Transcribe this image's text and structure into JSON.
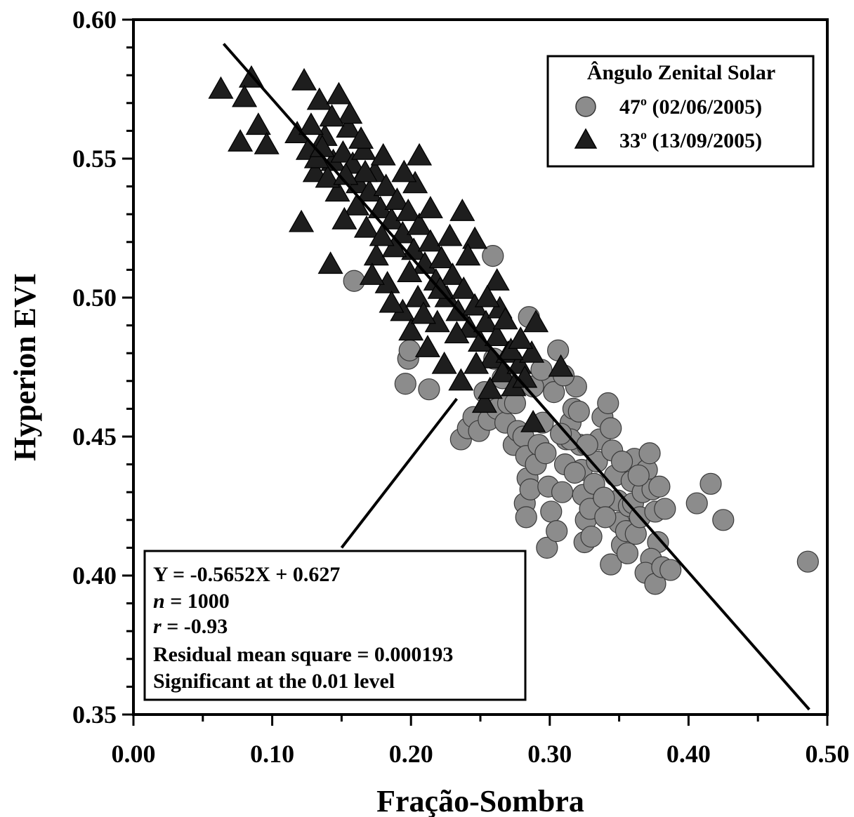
{
  "chart_data": {
    "type": "scatter",
    "title": "",
    "xlabel": "Fração-Sombra",
    "ylabel": "Hyperion EVI",
    "xlim": [
      0.0,
      0.5
    ],
    "ylim": [
      0.35,
      0.6
    ],
    "xticks": [
      "0.00",
      "0.10",
      "0.20",
      "0.30",
      "0.40",
      "0.50"
    ],
    "yticks": [
      "0.35",
      "0.40",
      "0.45",
      "0.50",
      "0.55",
      "0.60"
    ],
    "grid": false,
    "legend": {
      "title": "Ângulo Zenital Solar",
      "placement": "top-right",
      "entries": [
        {
          "label": "47",
          "sup": "o",
          "suffix": " (02/06/2005)",
          "marker": "circle"
        },
        {
          "label": "33",
          "sup": "o",
          "suffix": " (13/09/2005)",
          "marker": "triangle"
        }
      ]
    },
    "series": [
      {
        "name": "47o (02/06/2005)",
        "marker": "circle",
        "color": "#8c8c8c",
        "points": [
          [
            0.159,
            0.506
          ],
          [
            0.259,
            0.515
          ],
          [
            0.196,
            0.469
          ],
          [
            0.213,
            0.467
          ],
          [
            0.198,
            0.478
          ],
          [
            0.199,
            0.481
          ],
          [
            0.236,
            0.449
          ],
          [
            0.241,
            0.453
          ],
          [
            0.245,
            0.457
          ],
          [
            0.249,
            0.452
          ],
          [
            0.256,
            0.456
          ],
          [
            0.262,
            0.46
          ],
          [
            0.268,
            0.455
          ],
          [
            0.27,
            0.462
          ],
          [
            0.274,
            0.447
          ],
          [
            0.277,
            0.452
          ],
          [
            0.281,
            0.45
          ],
          [
            0.283,
            0.443
          ],
          [
            0.284,
            0.435
          ],
          [
            0.282,
            0.426
          ],
          [
            0.283,
            0.421
          ],
          [
            0.286,
            0.431
          ],
          [
            0.29,
            0.44
          ],
          [
            0.292,
            0.447
          ],
          [
            0.295,
            0.455
          ],
          [
            0.297,
            0.444
          ],
          [
            0.299,
            0.432
          ],
          [
            0.301,
            0.423
          ],
          [
            0.298,
            0.41
          ],
          [
            0.305,
            0.416
          ],
          [
            0.309,
            0.43
          ],
          [
            0.311,
            0.44
          ],
          [
            0.312,
            0.449
          ],
          [
            0.315,
            0.455
          ],
          [
            0.317,
            0.46
          ],
          [
            0.319,
            0.468
          ],
          [
            0.321,
            0.459
          ],
          [
            0.322,
            0.447
          ],
          [
            0.323,
            0.438
          ],
          [
            0.324,
            0.429
          ],
          [
            0.326,
            0.42
          ],
          [
            0.325,
            0.412
          ],
          [
            0.329,
            0.424
          ],
          [
            0.332,
            0.433
          ],
          [
            0.334,
            0.441
          ],
          [
            0.336,
            0.449
          ],
          [
            0.338,
            0.457
          ],
          [
            0.342,
            0.462
          ],
          [
            0.344,
            0.453
          ],
          [
            0.345,
            0.445
          ],
          [
            0.347,
            0.436
          ],
          [
            0.349,
            0.427
          ],
          [
            0.35,
            0.419
          ],
          [
            0.352,
            0.411
          ],
          [
            0.355,
            0.416
          ],
          [
            0.357,
            0.425
          ],
          [
            0.359,
            0.434
          ],
          [
            0.361,
            0.442
          ],
          [
            0.36,
            0.426
          ],
          [
            0.362,
            0.415
          ],
          [
            0.365,
            0.421
          ],
          [
            0.367,
            0.43
          ],
          [
            0.37,
            0.438
          ],
          [
            0.372,
            0.444
          ],
          [
            0.374,
            0.431
          ],
          [
            0.376,
            0.423
          ],
          [
            0.378,
            0.412
          ],
          [
            0.373,
            0.406
          ],
          [
            0.369,
            0.401
          ],
          [
            0.376,
            0.397
          ],
          [
            0.381,
            0.403
          ],
          [
            0.387,
            0.402
          ],
          [
            0.383,
            0.424
          ],
          [
            0.379,
            0.432
          ],
          [
            0.406,
            0.426
          ],
          [
            0.416,
            0.433
          ],
          [
            0.425,
            0.42
          ],
          [
            0.486,
            0.405
          ],
          [
            0.344,
            0.404
          ],
          [
            0.356,
            0.408
          ],
          [
            0.298,
            0.47
          ],
          [
            0.306,
            0.481
          ],
          [
            0.303,
            0.466
          ],
          [
            0.31,
            0.472
          ],
          [
            0.288,
            0.468
          ],
          [
            0.294,
            0.474
          ],
          [
            0.285,
            0.493
          ],
          [
            0.275,
            0.462
          ],
          [
            0.315,
            0.449
          ],
          [
            0.33,
            0.414
          ],
          [
            0.339,
            0.428
          ],
          [
            0.352,
            0.441
          ],
          [
            0.364,
            0.436
          ],
          [
            0.34,
            0.421
          ],
          [
            0.327,
            0.447
          ],
          [
            0.318,
            0.437
          ],
          [
            0.308,
            0.451
          ],
          [
            0.266,
            0.471
          ],
          [
            0.253,
            0.466
          ],
          [
            0.26,
            0.478
          ]
        ]
      },
      {
        "name": "33o (13/09/2005)",
        "marker": "triangle",
        "color": "#1e1e1e",
        "points": [
          [
            0.063,
            0.575
          ],
          [
            0.085,
            0.579
          ],
          [
            0.08,
            0.572
          ],
          [
            0.077,
            0.556
          ],
          [
            0.09,
            0.562
          ],
          [
            0.096,
            0.555
          ],
          [
            0.123,
            0.578
          ],
          [
            0.121,
            0.527
          ],
          [
            0.142,
            0.512
          ],
          [
            0.134,
            0.571
          ],
          [
            0.148,
            0.573
          ],
          [
            0.155,
            0.561
          ],
          [
            0.118,
            0.559
          ],
          [
            0.126,
            0.553
          ],
          [
            0.131,
            0.545
          ],
          [
            0.138,
            0.558
          ],
          [
            0.144,
            0.549
          ],
          [
            0.151,
            0.552
          ],
          [
            0.158,
            0.548
          ],
          [
            0.162,
            0.541
          ],
          [
            0.166,
            0.553
          ],
          [
            0.17,
            0.538
          ],
          [
            0.174,
            0.545
          ],
          [
            0.178,
            0.532
          ],
          [
            0.182,
            0.54
          ],
          [
            0.186,
            0.528
          ],
          [
            0.19,
            0.535
          ],
          [
            0.194,
            0.523
          ],
          [
            0.198,
            0.531
          ],
          [
            0.202,
            0.517
          ],
          [
            0.206,
            0.526
          ],
          [
            0.21,
            0.512
          ],
          [
            0.214,
            0.52
          ],
          [
            0.218,
            0.506
          ],
          [
            0.222,
            0.514
          ],
          [
            0.226,
            0.5
          ],
          [
            0.23,
            0.508
          ],
          [
            0.234,
            0.495
          ],
          [
            0.238,
            0.503
          ],
          [
            0.242,
            0.489
          ],
          [
            0.246,
            0.497
          ],
          [
            0.25,
            0.484
          ],
          [
            0.254,
            0.491
          ],
          [
            0.258,
            0.478
          ],
          [
            0.262,
            0.486
          ],
          [
            0.266,
            0.473
          ],
          [
            0.27,
            0.48
          ],
          [
            0.274,
            0.468
          ],
          [
            0.278,
            0.476
          ],
          [
            0.282,
            0.471
          ],
          [
            0.287,
            0.48
          ],
          [
            0.29,
            0.491
          ],
          [
            0.308,
            0.475
          ],
          [
            0.288,
            0.455
          ],
          [
            0.253,
            0.462
          ],
          [
            0.257,
            0.467
          ],
          [
            0.236,
            0.47
          ],
          [
            0.206,
            0.551
          ],
          [
            0.203,
            0.541
          ],
          [
            0.237,
            0.531
          ],
          [
            0.246,
            0.521
          ],
          [
            0.262,
            0.506
          ],
          [
            0.264,
            0.496
          ],
          [
            0.272,
            0.481
          ],
          [
            0.194,
            0.495
          ],
          [
            0.183,
            0.505
          ],
          [
            0.175,
            0.515
          ],
          [
            0.168,
            0.525
          ],
          [
            0.161,
            0.533
          ],
          [
            0.147,
            0.538
          ],
          [
            0.152,
            0.528
          ],
          [
            0.14,
            0.543
          ],
          [
            0.132,
            0.55
          ],
          [
            0.172,
            0.508
          ],
          [
            0.186,
            0.498
          ],
          [
            0.2,
            0.488
          ],
          [
            0.212,
            0.482
          ],
          [
            0.224,
            0.476
          ],
          [
            0.205,
            0.5
          ],
          [
            0.219,
            0.491
          ],
          [
            0.233,
            0.487
          ],
          [
            0.247,
            0.476
          ],
          [
            0.228,
            0.522
          ],
          [
            0.214,
            0.532
          ],
          [
            0.195,
            0.545
          ],
          [
            0.18,
            0.551
          ],
          [
            0.164,
            0.557
          ],
          [
            0.156,
            0.566
          ],
          [
            0.143,
            0.565
          ],
          [
            0.128,
            0.562
          ],
          [
            0.188,
            0.518
          ],
          [
            0.179,
            0.522
          ],
          [
            0.199,
            0.509
          ],
          [
            0.209,
            0.494
          ],
          [
            0.241,
            0.515
          ],
          [
            0.255,
            0.5
          ],
          [
            0.268,
            0.492
          ],
          [
            0.279,
            0.485
          ],
          [
            0.167,
            0.545
          ],
          [
            0.153,
            0.544
          ],
          [
            0.136,
            0.554
          ],
          [
            0.221,
            0.503
          ]
        ]
      }
    ],
    "regression_line": {
      "x1": 0.065,
      "y1": 0.5913,
      "x2": 0.487,
      "y2": 0.3518
    },
    "annotation": {
      "lines": [
        {
          "prefix": "",
          "italic": "",
          "text": "Y = -0.5652X + 0.627"
        },
        {
          "prefix": "",
          "italic": "n",
          "text": " = 1000"
        },
        {
          "prefix": "",
          "italic": "r",
          "text": " = -0.93"
        },
        {
          "prefix": "",
          "italic": "",
          "text": "Residual mean square = 0.000193"
        },
        {
          "prefix": "",
          "italic": "",
          "text": "Significant at the 0.01 level"
        }
      ],
      "pointer": {
        "x1": 0.15,
        "y1": 0.41,
        "x2": 0.233,
        "y2": 0.4636
      }
    }
  }
}
